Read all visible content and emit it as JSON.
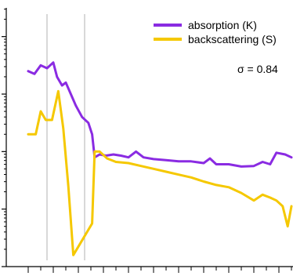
{
  "chart_data": {
    "type": "line",
    "title": "",
    "xlabel": "",
    "ylabel": "",
    "yscale": "log",
    "grid": false,
    "legend_position": "top-right",
    "annotation": "σ = 0.84",
    "xlim": [
      0,
      21
    ],
    "ylim": [
      -2,
      2.5
    ],
    "vertical_lines": [
      1.5,
      4.5
    ],
    "series": [
      {
        "name": "absorption (K)",
        "color": "#8a2be2",
        "points": [
          [
            0,
            1.4
          ],
          [
            0.5,
            1.35
          ],
          [
            1,
            1.5
          ],
          [
            1.5,
            1.45
          ],
          [
            2,
            1.55
          ],
          [
            2.3,
            1.3
          ],
          [
            2.7,
            1.15
          ],
          [
            3,
            1.2
          ],
          [
            3.4,
            1.0
          ],
          [
            3.8,
            0.8
          ],
          [
            4.3,
            0.6
          ],
          [
            4.8,
            0.5
          ],
          [
            5.1,
            0.3
          ],
          [
            5.3,
            -0.1
          ],
          [
            5.7,
            -0.05
          ],
          [
            6.2,
            -0.07
          ],
          [
            6.8,
            -0.05
          ],
          [
            7.4,
            -0.07
          ],
          [
            8,
            -0.1
          ],
          [
            8.6,
            0.0
          ],
          [
            9.2,
            -0.1
          ],
          [
            10,
            -0.13
          ],
          [
            11,
            -0.15
          ],
          [
            12,
            -0.17
          ],
          [
            13,
            -0.17
          ],
          [
            14,
            -0.2
          ],
          [
            14.5,
            -0.12
          ],
          [
            15,
            -0.22
          ],
          [
            16,
            -0.22
          ],
          [
            17,
            -0.26
          ],
          [
            18,
            -0.25
          ],
          [
            18.7,
            -0.18
          ],
          [
            19.3,
            -0.22
          ],
          [
            19.8,
            -0.02
          ],
          [
            20.5,
            -0.05
          ],
          [
            21,
            -0.1
          ]
        ]
      },
      {
        "name": "backscattering (S)",
        "color": "#f5c800",
        "points": [
          [
            0,
            0.3
          ],
          [
            0.6,
            0.3
          ],
          [
            1,
            0.7
          ],
          [
            1.4,
            0.55
          ],
          [
            1.9,
            0.55
          ],
          [
            2.4,
            1.05
          ],
          [
            2.8,
            0.4
          ],
          [
            3.2,
            -0.6
          ],
          [
            3.6,
            -1.8
          ],
          [
            5.1,
            -1.25
          ],
          [
            5.3,
            0.0
          ],
          [
            5.7,
            0.0
          ],
          [
            6.3,
            -0.12
          ],
          [
            7,
            -0.18
          ],
          [
            8,
            -0.2
          ],
          [
            9,
            -0.25
          ],
          [
            10,
            -0.3
          ],
          [
            11,
            -0.35
          ],
          [
            12,
            -0.4
          ],
          [
            13,
            -0.45
          ],
          [
            14,
            -0.52
          ],
          [
            15,
            -0.58
          ],
          [
            16,
            -0.62
          ],
          [
            17,
            -0.72
          ],
          [
            18,
            -0.85
          ],
          [
            18.7,
            -0.75
          ],
          [
            19.3,
            -0.8
          ],
          [
            19.8,
            -0.85
          ],
          [
            20.3,
            -0.95
          ],
          [
            20.7,
            -1.3
          ],
          [
            21,
            -0.95
          ]
        ]
      }
    ]
  }
}
